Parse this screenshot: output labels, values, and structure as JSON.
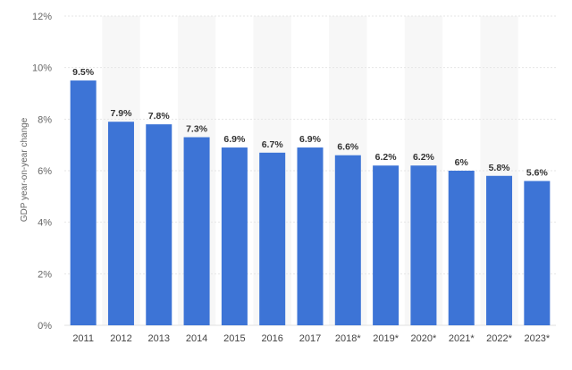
{
  "chart_data": {
    "type": "bar",
    "ylabel": "GDP year-on-year change",
    "categories": [
      "2011",
      "2012",
      "2013",
      "2014",
      "2015",
      "2016",
      "2017",
      "2018*",
      "2019*",
      "2020*",
      "2021*",
      "2022*",
      "2023*"
    ],
    "values": [
      9.5,
      7.9,
      7.8,
      7.3,
      6.9,
      6.7,
      6.9,
      6.6,
      6.2,
      6.2,
      6.0,
      5.8,
      5.6
    ],
    "data_labels": [
      "9.5%",
      "7.9%",
      "7.8%",
      "7.3%",
      "6.9%",
      "6.7%",
      "6.9%",
      "6.6%",
      "6.2%",
      "6.2%",
      "6%",
      "5.8%",
      "5.6%"
    ],
    "y_ticks": [
      "0%",
      "2%",
      "4%",
      "6%",
      "8%",
      "10%",
      "12%"
    ],
    "y_tick_values": [
      0,
      2,
      4,
      6,
      8,
      10,
      12
    ],
    "ylim": [
      0,
      12
    ],
    "grid": true,
    "alternating_bands": true,
    "bar_color": "#3d74d6",
    "band_color": "#f7f7f7"
  }
}
